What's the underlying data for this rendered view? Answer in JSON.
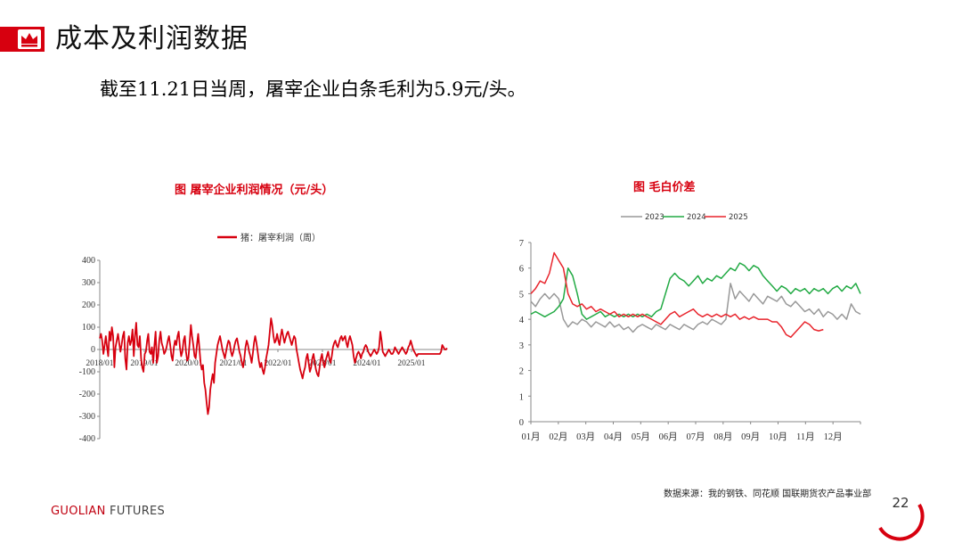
{
  "title": "成本及利润数据",
  "subtitle": "截至11.21日当周，屠宰企业白条毛利为5.9元/头。",
  "source": "数据来源：我的钢铁、同花顺  国联期货农产品事业部",
  "brand": {
    "main": "GUOLIAN",
    "rest": " FUTURES"
  },
  "page_number": "22",
  "colors": {
    "accent": "#d7000f",
    "s2023": "#999999",
    "s2024": "#22aa44",
    "s2025": "#e8242c"
  },
  "chart_data": [
    {
      "type": "line",
      "title": "图  屠宰企业利润情况（元/头）",
      "legend": [
        "猪：屠宰利润（周）"
      ],
      "ylim": [
        -400,
        400
      ],
      "yticks": [
        400,
        300,
        200,
        100,
        0,
        -100,
        -200,
        -300,
        -400
      ],
      "xlabels": [
        "2018/01",
        "2019/01",
        "2020/01",
        "2021/01",
        "2022/01",
        "2023/01",
        "2024/01",
        "2025/01"
      ],
      "series": [
        {
          "name": "猪：屠宰利润（周）",
          "values": [
            50,
            70,
            40,
            -20,
            20,
            60,
            10,
            -30,
            80,
            40,
            100,
            60,
            -80,
            10,
            40,
            70,
            30,
            -10,
            20,
            60,
            80,
            -40,
            -90,
            30,
            60,
            20,
            40,
            90,
            -30,
            60,
            120,
            20,
            10,
            60,
            -40,
            -80,
            -100,
            -20,
            -10,
            40,
            70,
            -10,
            -20,
            10,
            -60,
            20,
            80,
            -60,
            -30,
            40,
            80,
            30,
            10,
            -20,
            -10,
            10,
            40,
            60,
            20,
            -30,
            -50,
            10,
            40,
            20,
            60,
            80,
            10,
            -30,
            -10,
            40,
            60,
            -10,
            -50,
            -40,
            30,
            110,
            60,
            20,
            -30,
            -40,
            20,
            70,
            10,
            -60,
            -90,
            -70,
            -150,
            -180,
            -240,
            -290,
            -260,
            -180,
            -140,
            -110,
            -150,
            -60,
            -20,
            20,
            40,
            60,
            30,
            0,
            -20,
            -40,
            -10,
            20,
            40,
            30,
            -10,
            -30,
            -10,
            20,
            40,
            50,
            20,
            -10,
            -30,
            -60,
            -80,
            -40,
            10,
            40,
            20,
            -10,
            -30,
            -60,
            -20,
            30,
            60,
            30,
            -10,
            -50,
            -80,
            -60,
            -90,
            -110,
            -80,
            -40,
            -10,
            20,
            80,
            140,
            110,
            60,
            30,
            40,
            70,
            40,
            20,
            60,
            90,
            60,
            30,
            50,
            70,
            80,
            60,
            40,
            20,
            40,
            60,
            50,
            0,
            -30,
            -60,
            -90,
            -110,
            -130,
            -100,
            -80,
            -40,
            -20,
            -60,
            -100,
            -80,
            -40,
            -20,
            -60,
            -90,
            -110,
            -120,
            -80,
            -40,
            -20,
            -60,
            -80,
            -50,
            -30,
            -10,
            -40,
            -60,
            -30,
            10,
            30,
            40,
            20,
            10,
            30,
            50,
            60,
            40,
            50,
            60,
            30,
            10,
            40,
            60,
            40,
            20,
            -30,
            -60,
            -40,
            -20,
            -10,
            -20,
            -40,
            -20,
            -10,
            10,
            20,
            10,
            -10,
            -20,
            -30,
            -20,
            -10,
            0,
            -10,
            -20,
            -10,
            10,
            80,
            40,
            -10,
            -20,
            -30,
            -20,
            -10,
            0,
            -10,
            -20,
            -20,
            -10,
            10,
            0,
            -10,
            -20,
            -10,
            0,
            10,
            0,
            -10,
            -20,
            -10,
            10,
            20,
            40,
            20,
            0,
            -10,
            -20,
            -30,
            -20,
            -20,
            -20,
            -20,
            -20,
            -20,
            -20,
            -20,
            -20,
            -20,
            -20,
            -20,
            -20,
            -20,
            -20,
            -20,
            -20,
            -20,
            -20,
            -10,
            20,
            10,
            0,
            0,
            5.9
          ]
        }
      ]
    },
    {
      "type": "line",
      "title": "图    毛白价差",
      "legend": [
        "2023",
        "2024",
        "2025"
      ],
      "ylim": [
        0,
        7
      ],
      "yticks": [
        0,
        1,
        2,
        3,
        4,
        5,
        6,
        7
      ],
      "xlabels": [
        "01月",
        "02月",
        "03月",
        "04月",
        "05月",
        "06月",
        "07月",
        "08月",
        "09月",
        "10月",
        "11月",
        "12月"
      ],
      "series": [
        {
          "name": "2023",
          "values": [
            4.7,
            4.5,
            4.8,
            5.0,
            4.8,
            5.0,
            4.8,
            4.0,
            3.7,
            3.9,
            3.8,
            4.0,
            3.9,
            3.7,
            3.9,
            3.8,
            3.7,
            3.9,
            3.7,
            3.8,
            3.6,
            3.7,
            3.5,
            3.7,
            3.8,
            3.7,
            3.6,
            3.8,
            3.7,
            3.6,
            3.8,
            3.7,
            3.6,
            3.8,
            3.7,
            3.6,
            3.8,
            3.9,
            3.8,
            4.0,
            3.9,
            3.8,
            4.0,
            5.4,
            4.8,
            5.1,
            4.9,
            4.7,
            5.0,
            4.8,
            4.6,
            4.9,
            4.8,
            4.7,
            4.9,
            4.6,
            4.5,
            4.7,
            4.5,
            4.3,
            4.4,
            4.2,
            4.4,
            4.1,
            4.3,
            4.2,
            4.0,
            4.2,
            4.0,
            4.6,
            4.3,
            4.2
          ]
        },
        {
          "name": "2024",
          "values": [
            4.2,
            4.3,
            4.2,
            4.1,
            4.2,
            4.3,
            4.5,
            4.8,
            6.0,
            5.7,
            5.0,
            4.2,
            4.0,
            4.1,
            4.2,
            4.3,
            4.1,
            4.2,
            4.1,
            4.2,
            4.1,
            4.2,
            4.1,
            4.2,
            4.1,
            4.2,
            4.1,
            4.3,
            4.4,
            5.0,
            5.6,
            5.8,
            5.6,
            5.5,
            5.3,
            5.5,
            5.7,
            5.4,
            5.6,
            5.5,
            5.7,
            5.6,
            5.8,
            6.0,
            5.9,
            6.2,
            6.1,
            5.9,
            6.1,
            6.0,
            5.7,
            5.5,
            5.3,
            5.1,
            5.3,
            5.2,
            5.0,
            5.2,
            5.1,
            5.2,
            5.0,
            5.2,
            5.1,
            5.2,
            5.0,
            5.2,
            5.3,
            5.1,
            5.3,
            5.2,
            5.4,
            5.0
          ]
        },
        {
          "name": "2025",
          "values": [
            5.0,
            5.2,
            5.5,
            5.4,
            5.8,
            6.6,
            6.3,
            6.0,
            5.0,
            4.6,
            4.5,
            4.6,
            4.4,
            4.5,
            4.3,
            4.4,
            4.3,
            4.2,
            4.3,
            4.1,
            4.2,
            4.1,
            4.2,
            4.1,
            4.2,
            4.1,
            4.0,
            3.9,
            3.8,
            4.0,
            4.2,
            4.3,
            4.1,
            4.2,
            4.3,
            4.4,
            4.2,
            4.1,
            4.2,
            4.1,
            4.2,
            4.1,
            4.2,
            4.1,
            4.2,
            4.0,
            4.1,
            4.0,
            4.1,
            4.0,
            4.0,
            4.0,
            3.9,
            3.9,
            3.7,
            3.4,
            3.3,
            3.5,
            3.7,
            3.9,
            3.8,
            3.6,
            3.55,
            3.6
          ]
        }
      ]
    }
  ]
}
